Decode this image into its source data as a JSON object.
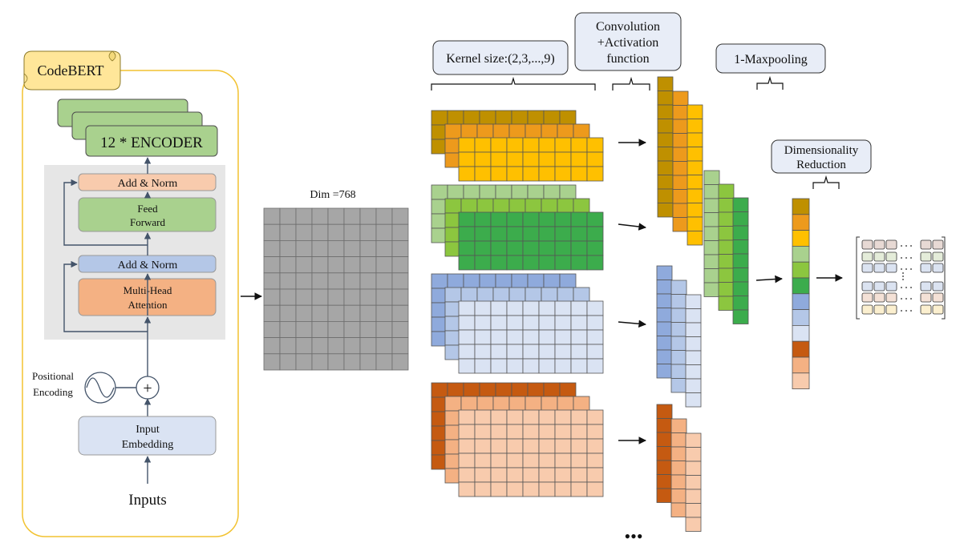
{
  "codebert": {
    "title": "CodeBERT",
    "encoder_label": "12 * ENCODER",
    "add_norm_top": "Add & Norm",
    "feed_forward": [
      "Feed",
      "Forward"
    ],
    "add_norm_bottom": "Add & Norm",
    "attention": [
      "Multi-Head",
      "Attention"
    ],
    "positional_encoding": [
      "Positional",
      "Encoding"
    ],
    "plus": "+",
    "input_embedding": [
      "Input",
      "Embedding"
    ],
    "inputs": "Inputs"
  },
  "matrix": {
    "label": "Dim =768"
  },
  "kernel_label": "Kernel size:(2,3,...,9)",
  "conv_label": [
    "Convolution",
    "+Activation",
    "function"
  ],
  "maxpool_label": "1-Maxpooling",
  "dimred_label": [
    "Dimensionality",
    "Reduction"
  ],
  "ellipsis": "•••",
  "colors": {
    "encoder_green": "#a9d18e",
    "add_norm_peach": "#f8cbad",
    "feed_forward_green": "#a9d18e",
    "add_norm_blue": "#b4c7e7",
    "attention_orange": "#f4b183",
    "embedding_blue": "#dae3f3",
    "matrix_gray": "#a6a6a6",
    "codebert_border": "#f2c230",
    "codebert_tag": "#ffe699",
    "label_box": "#e8edf7",
    "group1": [
      "#bf9000",
      "#ed9a1c",
      "#ffc000"
    ],
    "group2": [
      "#a9d18e",
      "#8cc63f",
      "#3cac4c"
    ],
    "group3": [
      "#8faadc",
      "#b4c7e7",
      "#dae3f3"
    ],
    "group4": [
      "#c55a11",
      "#f4b183",
      "#f8cbad"
    ]
  }
}
